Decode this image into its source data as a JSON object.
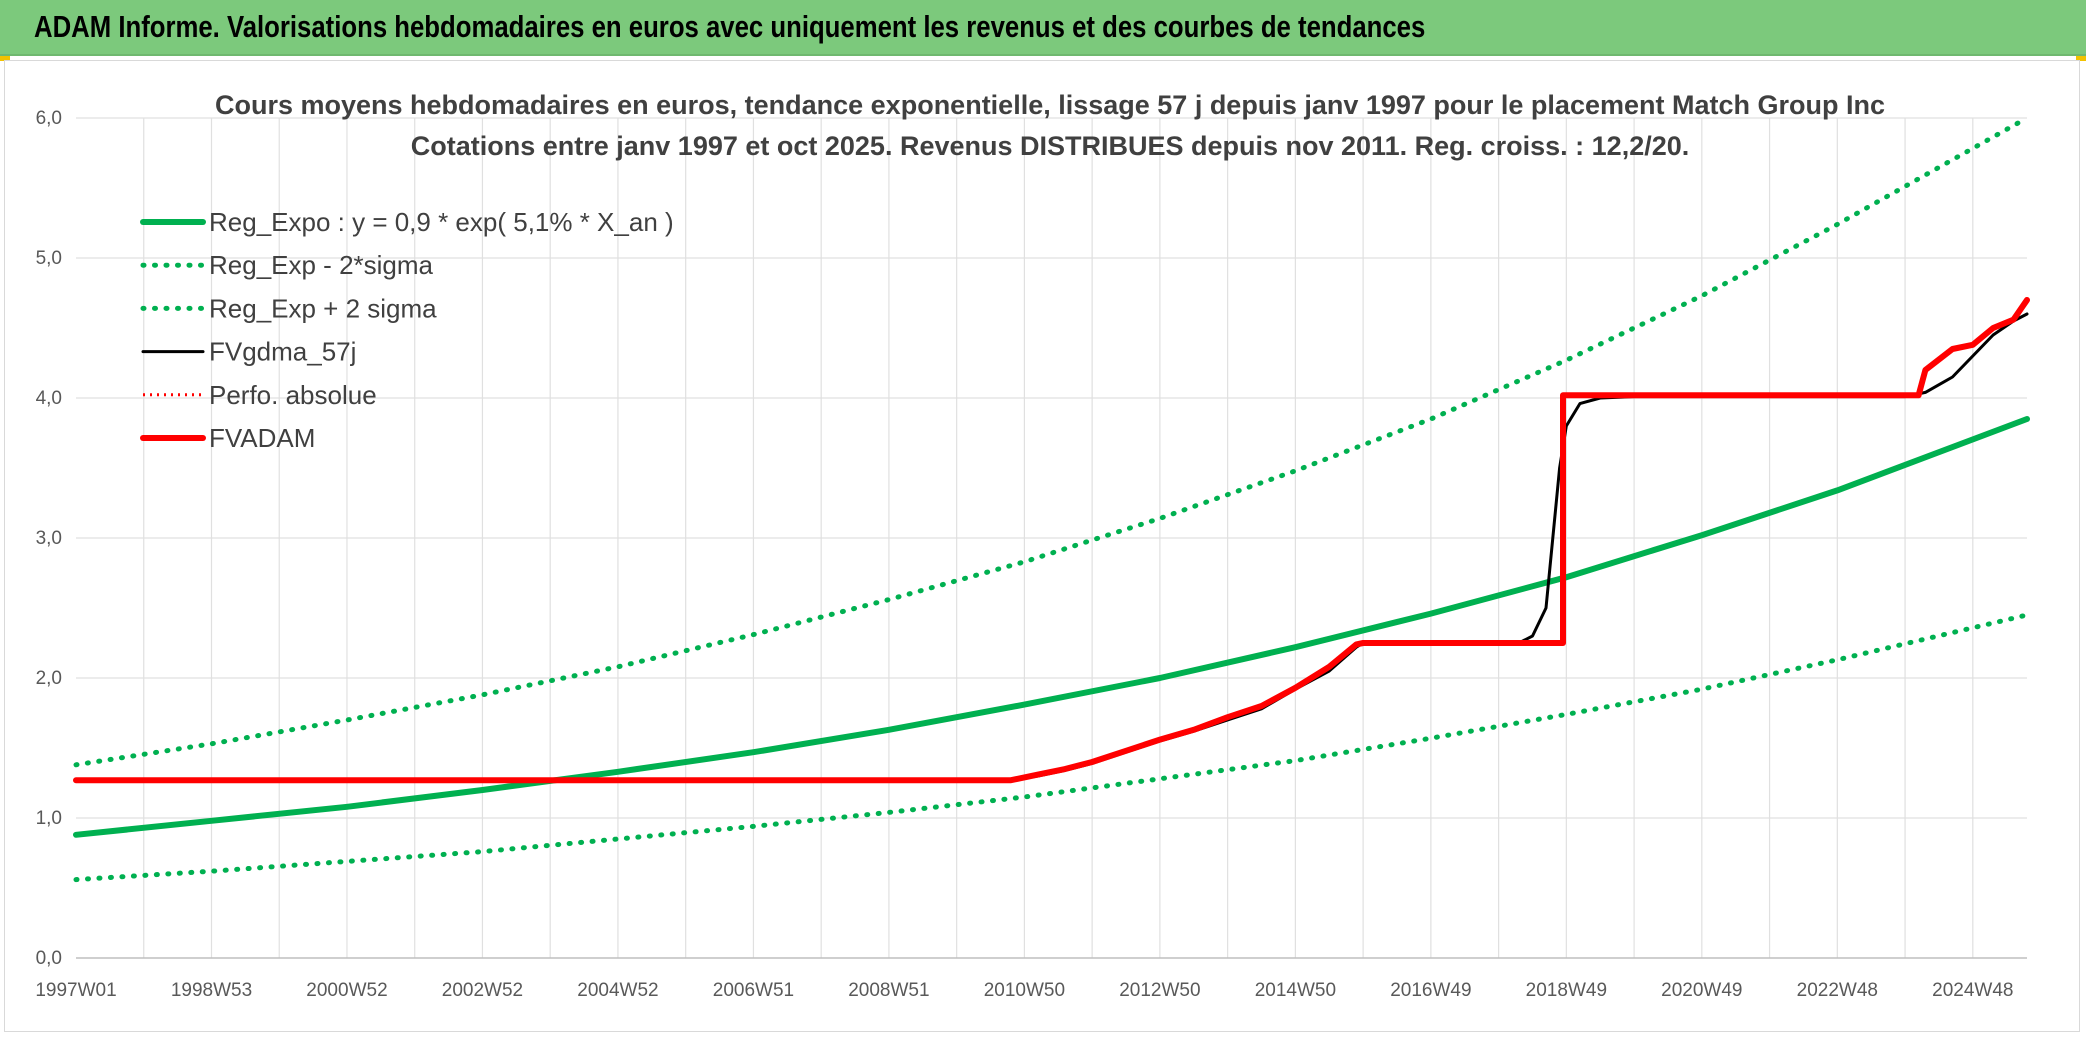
{
  "banner": {
    "title": "ADAM Informe. Valorisations hebdomadaires en euros avec uniquement les revenus et des courbes de tendances"
  },
  "colors": {
    "banner_bg": "#7cc97c",
    "green": "#00b050",
    "black": "#000000",
    "red": "#ff0000",
    "grid": "#e0e0e0"
  },
  "chart_data": {
    "type": "line",
    "title_lines": [
      "Cours moyens hebdomadaires en euros, tendance exponentielle, lissage 57 j depuis janv 1997 pour le placement Match Group Inc",
      "Cotations entre janv 1997 et oct 2025. Revenus DISTRIBUES depuis nov 2011. Reg. croiss. : 12,2/20."
    ],
    "x_tick_labels": [
      "1997W01",
      "1998W53",
      "2000W52",
      "2002W52",
      "2004W52",
      "2006W51",
      "2008W51",
      "2010W50",
      "2012W50",
      "2014W50",
      "2016W49",
      "2018W49",
      "2020W49",
      "2022W48",
      "2024W48"
    ],
    "x_range": [
      1997.0,
      2025.8
    ],
    "ylim": [
      0,
      6
    ],
    "y_tick_labels": [
      "0,0",
      "1,0",
      "2,0",
      "3,0",
      "4,0",
      "5,0",
      "6,0"
    ],
    "grid": true,
    "legend_position": "top-left",
    "series": [
      {
        "name": "Reg_Expo : y = 0,9 * exp( 5,1% *  X_an )",
        "color": "#00b050",
        "style": "solid",
        "x": [
          1997.0,
          1999.0,
          2001.0,
          2003.0,
          2005.0,
          2007.0,
          2009.0,
          2011.0,
          2013.0,
          2015.0,
          2017.0,
          2019.0,
          2021.0,
          2023.0,
          2025.8
        ],
        "y": [
          0.88,
          0.98,
          1.08,
          1.2,
          1.33,
          1.47,
          1.63,
          1.81,
          2.0,
          2.22,
          2.46,
          2.72,
          3.02,
          3.34,
          3.85
        ]
      },
      {
        "name": "Reg_Exp - 2*sigma",
        "color": "#00b050",
        "style": "dotted",
        "x": [
          1997.0,
          1999.0,
          2001.0,
          2003.0,
          2005.0,
          2007.0,
          2009.0,
          2011.0,
          2013.0,
          2015.0,
          2017.0,
          2019.0,
          2021.0,
          2023.0,
          2025.8
        ],
        "y": [
          0.56,
          0.62,
          0.69,
          0.76,
          0.85,
          0.94,
          1.04,
          1.15,
          1.28,
          1.41,
          1.57,
          1.74,
          1.92,
          2.13,
          2.45
        ]
      },
      {
        "name": "Reg_Exp + 2 sigma",
        "color": "#00b050",
        "style": "dotted",
        "x": [
          1997.0,
          1999.0,
          2001.0,
          2003.0,
          2005.0,
          2007.0,
          2009.0,
          2011.0,
          2013.0,
          2015.0,
          2017.0,
          2019.0,
          2021.0,
          2023.0,
          2025.8
        ],
        "y": [
          1.38,
          1.53,
          1.7,
          1.88,
          2.08,
          2.31,
          2.56,
          2.83,
          3.14,
          3.48,
          3.85,
          4.27,
          4.73,
          5.24,
          6.0
        ]
      },
      {
        "name": "FVgdma_57j",
        "color": "#000000",
        "style": "solid",
        "x": [
          1997.0,
          2010.8,
          2011.2,
          2011.6,
          2012.0,
          2012.5,
          2013.0,
          2013.5,
          2014.0,
          2014.5,
          2015.0,
          2015.5,
          2015.9,
          2016.0,
          2018.3,
          2018.5,
          2018.7,
          2018.8,
          2018.9,
          2019.0,
          2019.2,
          2019.5,
          2020.0,
          2024.0,
          2024.3,
          2024.7,
          2025.0,
          2025.3,
          2025.6,
          2025.8
        ],
        "y": [
          1.27,
          1.27,
          1.3,
          1.34,
          1.39,
          1.47,
          1.55,
          1.62,
          1.7,
          1.78,
          1.92,
          2.05,
          2.22,
          2.25,
          2.25,
          2.3,
          2.5,
          3.0,
          3.5,
          3.8,
          3.96,
          4.0,
          4.01,
          4.01,
          4.04,
          4.15,
          4.3,
          4.45,
          4.55,
          4.6
        ]
      },
      {
        "name": "Perfo. absolue",
        "color": "#ff0000",
        "style": "dotted",
        "x": [
          1997.0,
          2010.8,
          2011.2,
          2011.6,
          2012.0,
          2012.5,
          2013.0,
          2013.5,
          2014.0,
          2014.5,
          2015.0,
          2015.5,
          2015.9,
          2016.0,
          2018.95,
          2018.95,
          2024.2,
          2024.3,
          2024.7,
          2025.0,
          2025.3,
          2025.6,
          2025.8
        ],
        "y": [
          1.27,
          1.27,
          1.31,
          1.35,
          1.4,
          1.48,
          1.56,
          1.63,
          1.72,
          1.8,
          1.93,
          2.08,
          2.24,
          2.25,
          2.25,
          4.02,
          4.02,
          4.2,
          4.35,
          4.38,
          4.5,
          4.56,
          4.7
        ]
      },
      {
        "name": "FVADAM",
        "color": "#ff0000",
        "style": "solid",
        "x": [
          1997.0,
          2010.8,
          2011.2,
          2011.6,
          2012.0,
          2012.5,
          2013.0,
          2013.5,
          2014.0,
          2014.5,
          2015.0,
          2015.5,
          2015.9,
          2016.0,
          2018.95,
          2018.95,
          2024.2,
          2024.3,
          2024.7,
          2025.0,
          2025.3,
          2025.6,
          2025.8
        ],
        "y": [
          1.27,
          1.27,
          1.31,
          1.35,
          1.4,
          1.48,
          1.56,
          1.63,
          1.72,
          1.8,
          1.93,
          2.08,
          2.24,
          2.25,
          2.25,
          4.02,
          4.02,
          4.2,
          4.35,
          4.38,
          4.5,
          4.56,
          4.7
        ]
      }
    ]
  }
}
